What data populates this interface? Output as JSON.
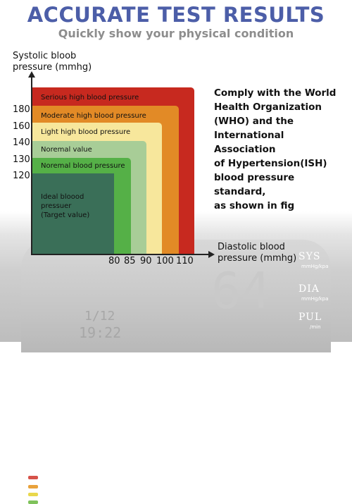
{
  "header": {
    "title": "ACCURATE TEST RESULTS",
    "subtitle": "Quickly show your physical condition"
  },
  "diagram": {
    "y_axis_label_line1": "Systolic bloob",
    "y_axis_label_line2": "pressure (mmhg)",
    "x_axis_label_line1": "Diastolic blood",
    "x_axis_label_line2": "pressure (mmhg)",
    "y_ticks": [
      "180",
      "160",
      "140",
      "130",
      "120"
    ],
    "x_ticks": [
      "80",
      "85",
      "90",
      "100",
      "110"
    ],
    "zones": [
      {
        "label": "Serious high blood pressure",
        "color": "#c7291f"
      },
      {
        "label": "Moderate high blood pressure",
        "color": "#e28a26"
      },
      {
        "label": "Light high blood pressure",
        "color": "#f7e79c"
      },
      {
        "label": "Noremal value",
        "color": "#a8cd97"
      },
      {
        "label": "Noremal blood pressure",
        "color": "#55b047"
      },
      {
        "label": "Ideal bloood",
        "color": "#3a6f58"
      }
    ],
    "ideal_desc_line2": "pressuer",
    "ideal_desc_line3": "(Target value)"
  },
  "statement": {
    "line1": "Comply with the World",
    "line2": "Health Organization",
    "line3": "(WHO) and the",
    "line4": "International Association",
    "line5": "of Hypertension(ISH)",
    "line6": "blood pressure standard,",
    "line7": "as shown in fig"
  },
  "device": {
    "sys": "SYS",
    "sys_unit": "mmHg/kpa",
    "dia": "DIA",
    "dia_unit": "mmHg/kpa",
    "pul": "PUL",
    "pul_unit": "/min"
  }
}
